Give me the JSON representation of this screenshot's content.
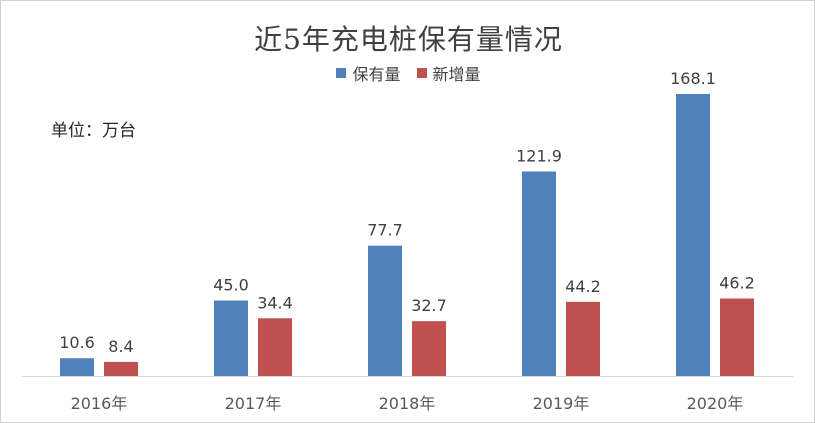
{
  "chart_data": {
    "type": "bar",
    "title": "近5年充电桩保有量情况",
    "unit_label": "单位：万台",
    "categories": [
      "2016年",
      "2017年",
      "2018年",
      "2019年",
      "2020年"
    ],
    "series": [
      {
        "name": "保有量",
        "values": [
          10.6,
          45.0,
          77.7,
          121.9,
          168.1
        ],
        "labels": [
          "10.6",
          "45.0",
          "77.7",
          "121.9",
          "168.1"
        ],
        "color": "#4f81bd"
      },
      {
        "name": "新增量",
        "values": [
          8.4,
          34.4,
          32.7,
          44.2,
          46.2
        ],
        "labels": [
          "8.4",
          "34.4",
          "32.7",
          "44.2",
          "46.2"
        ],
        "color": "#c0504d"
      }
    ],
    "ylim": [
      0,
      168.1
    ],
    "legend_position": "top-center",
    "grid": false
  }
}
